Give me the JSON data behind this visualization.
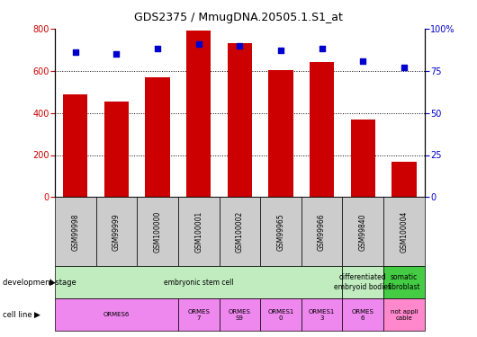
{
  "title": "GDS2375 / MmugDNA.20505.1.S1_at",
  "samples": [
    "GSM99998",
    "GSM99999",
    "GSM100000",
    "GSM100001",
    "GSM100002",
    "GSM99965",
    "GSM99966",
    "GSM99840",
    "GSM100004"
  ],
  "counts": [
    490,
    455,
    570,
    790,
    730,
    605,
    640,
    370,
    170
  ],
  "percentiles": [
    86,
    85,
    88,
    91,
    90,
    87,
    88,
    81,
    77
  ],
  "ylim_left": [
    0,
    800
  ],
  "ylim_right": [
    0,
    100
  ],
  "yticks_left": [
    0,
    200,
    400,
    600,
    800
  ],
  "yticks_right": [
    0,
    25,
    50,
    75,
    100
  ],
  "yticklabels_right": [
    "0",
    "25",
    "50",
    "75",
    "100%"
  ],
  "bar_color": "#cc0000",
  "dot_color": "#0000cc",
  "dev_spans": [
    [
      0,
      6,
      "embryonic stem cell",
      "#c0ecc0"
    ],
    [
      7,
      7,
      "differentiated\nembryoid bodies",
      "#c0ecc0"
    ],
    [
      8,
      8,
      "somatic\nfibroblast",
      "#44cc44"
    ]
  ],
  "cell_spans": [
    [
      0,
      2,
      "ORMES6",
      "#ee88ee"
    ],
    [
      3,
      3,
      "ORMES\n7",
      "#ee88ee"
    ],
    [
      4,
      4,
      "ORMES\nS9",
      "#ee88ee"
    ],
    [
      5,
      5,
      "ORMES1\n0",
      "#ee88ee"
    ],
    [
      6,
      6,
      "ORMES1\n3",
      "#ee88ee"
    ],
    [
      7,
      7,
      "ORMES\n6",
      "#ee88ee"
    ],
    [
      8,
      8,
      "not appli\ncable",
      "#ff88cc"
    ]
  ],
  "sample_label_color": "#cccccc",
  "legend_count_color": "#cc0000",
  "legend_dot_color": "#0000cc"
}
